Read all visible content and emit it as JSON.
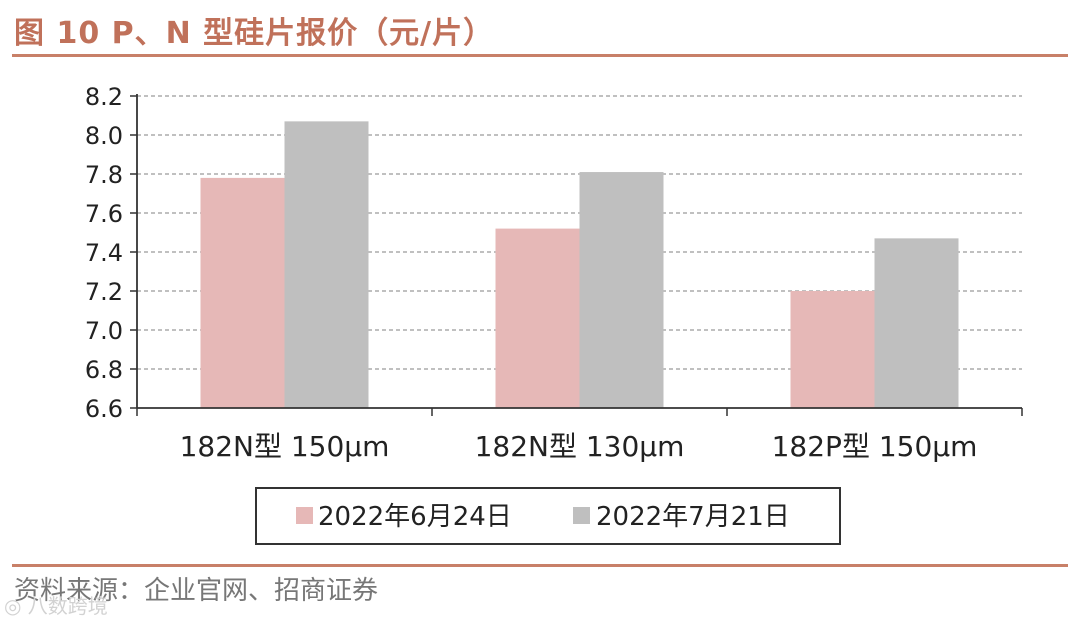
{
  "header": {
    "title": "图 10 P、N 型硅片报价（元/片）"
  },
  "footer": {
    "source": "资料来源：企业官网、招商证券",
    "watermark": "◎ 八数跨境"
  },
  "colors": {
    "series1": "#e6b8b7",
    "series2": "#bfbfbf",
    "accent": "#c0715a",
    "grid": "#9a9a9a"
  },
  "chart_data": {
    "type": "bar",
    "categories": [
      "182N型 150μm",
      "182N型 130μm",
      "182P型 150μm"
    ],
    "series": [
      {
        "name": "2022年6月24日",
        "values": [
          7.78,
          7.52,
          7.2
        ]
      },
      {
        "name": "2022年7月21日",
        "values": [
          8.07,
          7.81,
          7.47
        ]
      }
    ],
    "yticks": [
      "6.6",
      "6.8",
      "7.0",
      "7.2",
      "7.4",
      "7.6",
      "7.8",
      "8.0",
      "8.2"
    ],
    "ylim": [
      6.6,
      8.2
    ],
    "grid": true,
    "legend_position": "bottom"
  }
}
